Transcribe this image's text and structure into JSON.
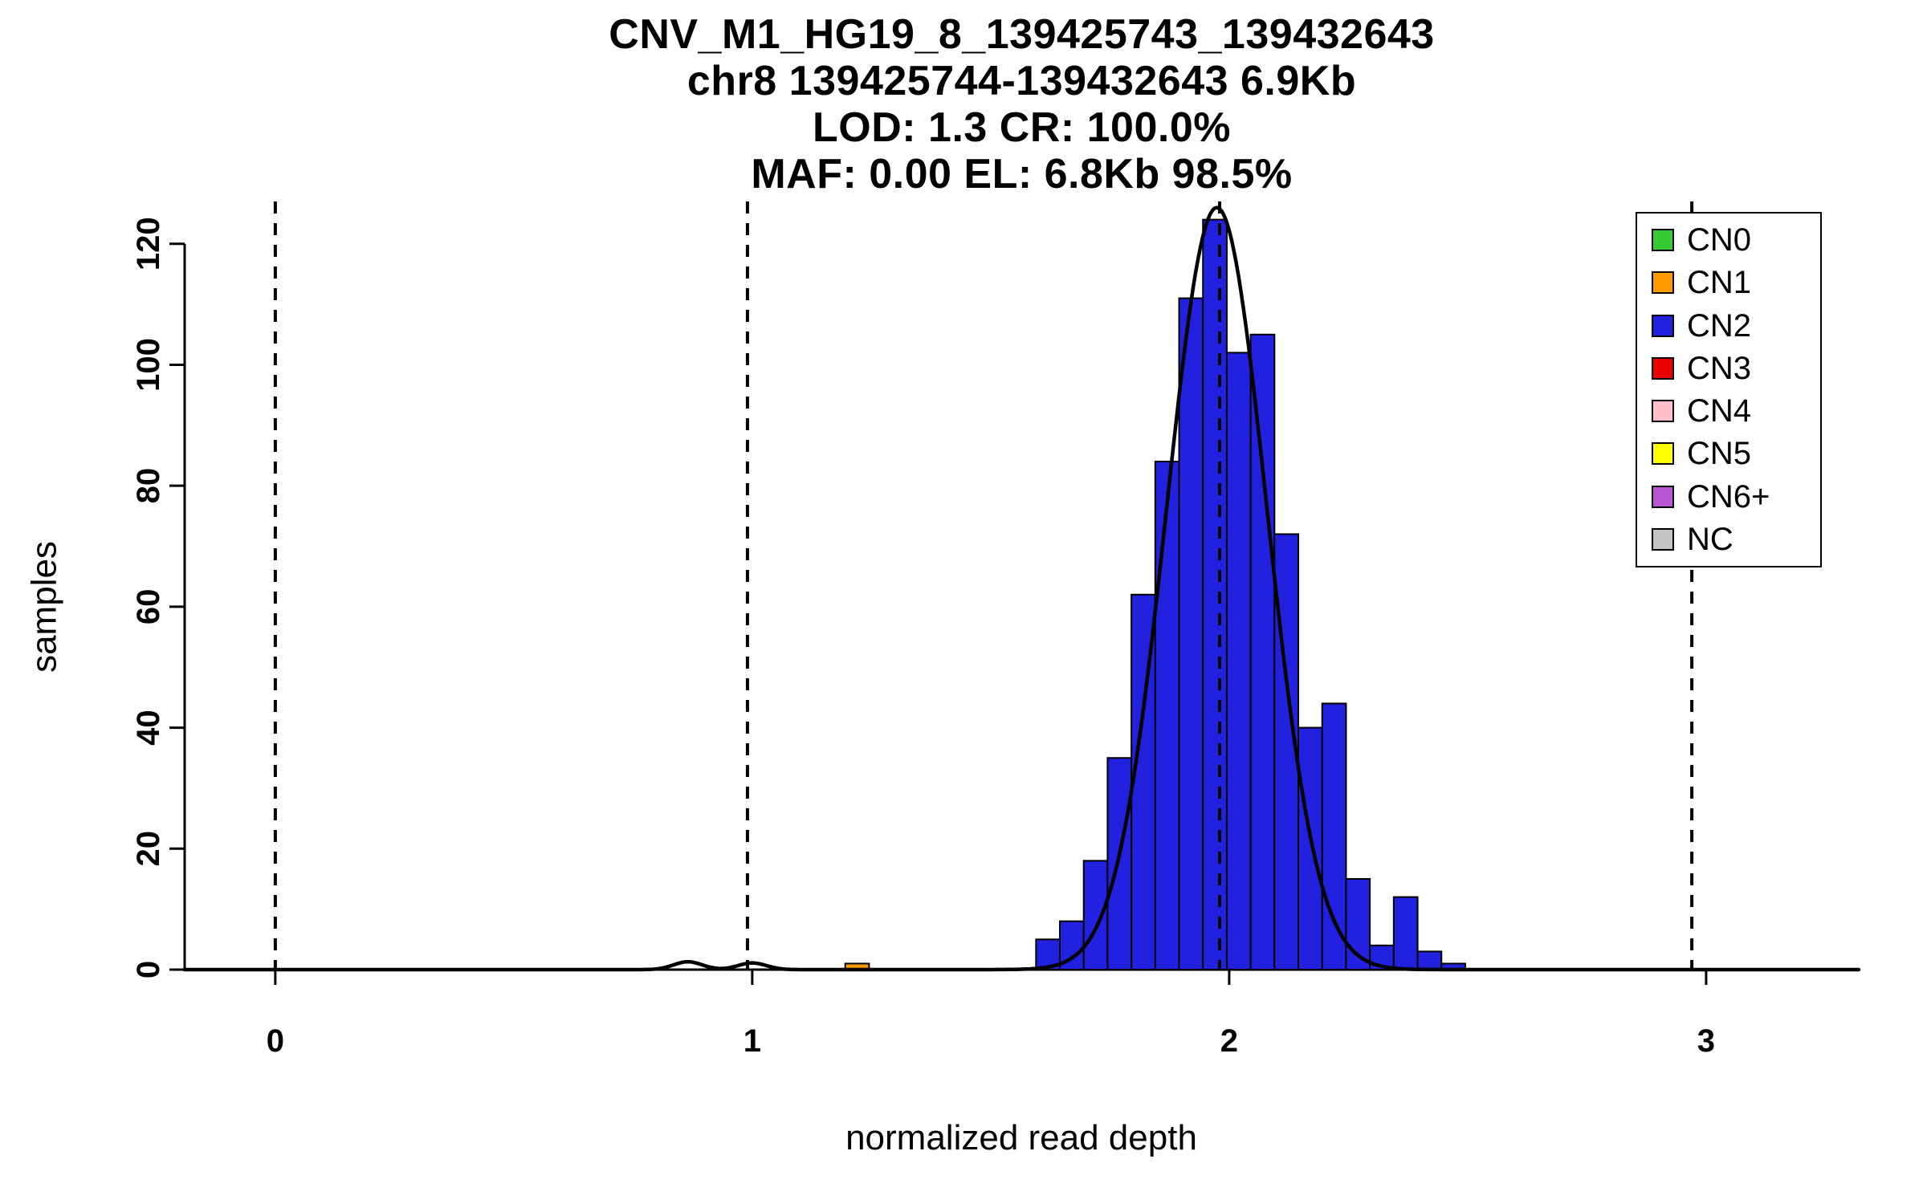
{
  "chart_data": {
    "type": "bar",
    "subtype": "histogram-with-density-fit",
    "title_lines": [
      "CNV_M1_HG19_8_139425743_139432643",
      "chr8 139425744-139432643 6.9Kb",
      "LOD: 1.3 CR: 100.0%",
      "MAF: 0.00 EL: 6.8Kb 98.5%"
    ],
    "xlabel": "normalized read depth",
    "ylabel": "samples",
    "xlim": [
      -0.19,
      3.32
    ],
    "ylim": [
      0,
      127
    ],
    "x_ticks": [
      0,
      1,
      2,
      3
    ],
    "y_ticks": [
      0,
      20,
      40,
      60,
      80,
      100,
      120
    ],
    "grid": false,
    "bin_width": 0.05,
    "series": [
      {
        "name": "CN2",
        "color": "#2121DF",
        "bins": [
          {
            "x": 1.595,
            "count": 5
          },
          {
            "x": 1.645,
            "count": 8
          },
          {
            "x": 1.695,
            "count": 18
          },
          {
            "x": 1.745,
            "count": 35
          },
          {
            "x": 1.795,
            "count": 62
          },
          {
            "x": 1.845,
            "count": 84
          },
          {
            "x": 1.895,
            "count": 111
          },
          {
            "x": 1.945,
            "count": 124
          },
          {
            "x": 1.995,
            "count": 102
          },
          {
            "x": 2.045,
            "count": 105
          },
          {
            "x": 2.095,
            "count": 72
          },
          {
            "x": 2.145,
            "count": 40
          },
          {
            "x": 2.195,
            "count": 44
          },
          {
            "x": 2.245,
            "count": 15
          },
          {
            "x": 2.295,
            "count": 4
          },
          {
            "x": 2.345,
            "count": 12
          },
          {
            "x": 2.395,
            "count": 3
          },
          {
            "x": 2.445,
            "count": 1
          }
        ]
      },
      {
        "name": "CN1",
        "color": "#FF9900",
        "bins": [
          {
            "x": 1.195,
            "count": 1
          }
        ]
      }
    ],
    "fit_curve": {
      "color": "#000000",
      "components": [
        {
          "mean": 1.974,
          "sd": 0.105,
          "amplitude": 126
        },
        {
          "mean": 0.865,
          "sd": 0.03,
          "amplitude": 1.3
        },
        {
          "mean": 1.0,
          "sd": 0.03,
          "amplitude": 1.1
        }
      ]
    },
    "dashed_lines_x": [
      0,
      0.99,
      1.98,
      2.97
    ],
    "legend": {
      "position": "top-right",
      "entries": [
        {
          "label": "CN0",
          "color": "#33CC33"
        },
        {
          "label": "CN1",
          "color": "#FF9900"
        },
        {
          "label": "CN2",
          "color": "#2121DF"
        },
        {
          "label": "CN3",
          "color": "#EE0000"
        },
        {
          "label": "CN4",
          "color": "#FFC0CB"
        },
        {
          "label": "CN5",
          "color": "#FFFF00"
        },
        {
          "label": "CN6+",
          "color": "#BA55D3"
        },
        {
          "label": "NC",
          "color": "#C4C4C4"
        }
      ]
    }
  }
}
